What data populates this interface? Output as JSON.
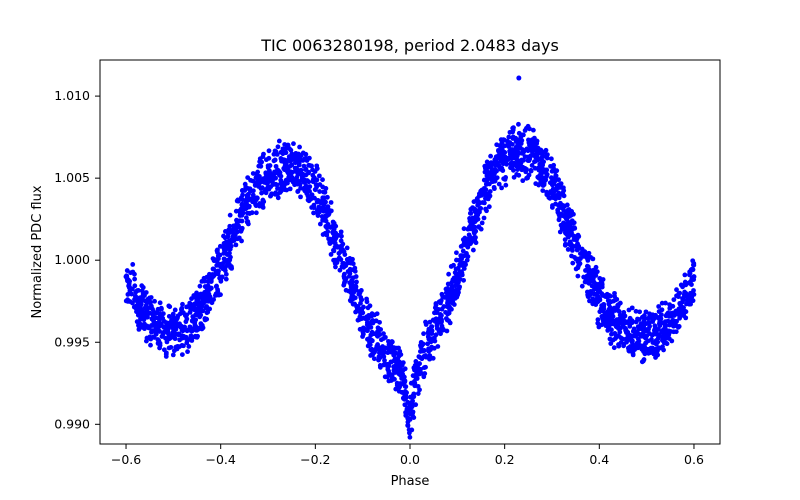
{
  "chart_data": {
    "type": "scatter",
    "title": "TIC 0063280198, period 2.0483 days",
    "xlabel": "Phase",
    "ylabel": "Normalized PDC flux",
    "xlim": [
      -0.655,
      0.655
    ],
    "ylim": [
      0.9888,
      1.0122
    ],
    "xticks": [
      -0.6,
      -0.4,
      -0.2,
      0.0,
      0.2,
      0.4,
      0.6
    ],
    "xtick_labels": [
      "−0.6",
      "−0.4",
      "−0.2",
      "0.0",
      "0.2",
      "0.4",
      "0.6"
    ],
    "yticks": [
      0.99,
      0.995,
      1.0,
      1.005,
      1.01
    ],
    "ytick_labels": [
      "0.990",
      "0.995",
      "1.000",
      "1.005",
      "1.010"
    ],
    "grid": false,
    "marker_color": "#0000ff",
    "series": [
      {
        "x": [
          -0.6,
          -0.58,
          -0.56,
          -0.54,
          -0.52,
          -0.5,
          -0.48,
          -0.46,
          -0.44,
          -0.42,
          -0.4,
          -0.38,
          -0.36,
          -0.34,
          -0.32,
          -0.3,
          -0.28,
          -0.26,
          -0.24,
          -0.22,
          -0.2,
          -0.18,
          -0.16,
          -0.14,
          -0.12,
          -0.1,
          -0.08,
          -0.06,
          -0.04,
          -0.03,
          -0.02,
          -0.01,
          -0.005,
          0.0,
          0.005,
          0.01,
          0.02,
          0.03,
          0.04,
          0.06,
          0.08,
          0.1,
          0.12,
          0.14,
          0.16,
          0.18,
          0.2,
          0.22,
          0.24,
          0.26,
          0.28,
          0.3,
          0.32,
          0.34,
          0.36,
          0.38,
          0.4,
          0.42,
          0.44,
          0.46,
          0.48,
          0.5,
          0.52,
          0.54,
          0.56,
          0.58,
          0.6,
          0.23
        ],
        "y": [
          0.999,
          0.9978,
          0.9968,
          0.9961,
          0.9956,
          0.9954,
          0.9957,
          0.9963,
          0.9972,
          0.9983,
          0.9996,
          1.001,
          1.0024,
          1.0037,
          1.0046,
          1.0052,
          1.0055,
          1.0056,
          1.0056,
          1.0052,
          1.0043,
          1.003,
          1.0014,
          0.9998,
          0.9982,
          0.9968,
          0.9956,
          0.9946,
          0.9938,
          0.9935,
          0.993,
          0.992,
          0.991,
          0.9903,
          0.9912,
          0.9925,
          0.9937,
          0.9945,
          0.9952,
          0.9962,
          0.9975,
          0.9991,
          1.0009,
          1.0027,
          1.0043,
          1.0055,
          1.0062,
          1.0065,
          1.0066,
          1.0064,
          1.0058,
          1.0047,
          1.0032,
          1.0016,
          1.0001,
          0.9988,
          0.9976,
          0.9967,
          0.996,
          0.9956,
          0.9955,
          0.9954,
          0.9955,
          0.996,
          0.9968,
          0.9978,
          0.999,
          1.0111
        ]
      }
    ]
  }
}
